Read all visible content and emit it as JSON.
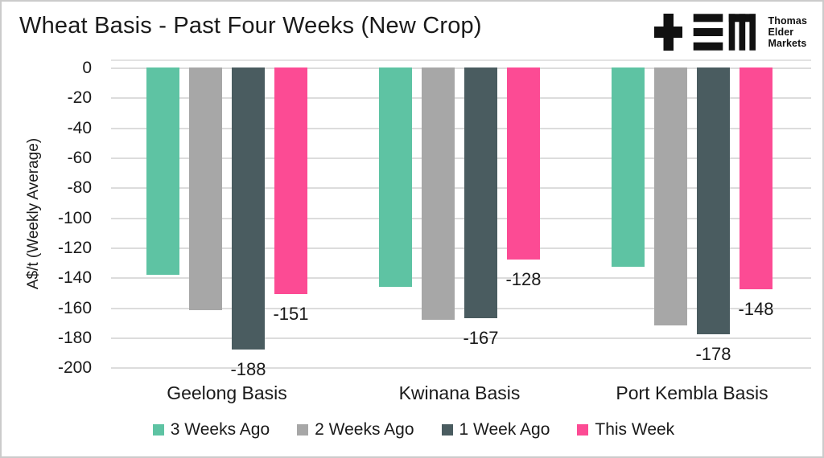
{
  "header": {
    "title": "Wheat Basis - Past Four Weeks (New Crop)"
  },
  "logo": {
    "lines": [
      "Thomas",
      "Elder",
      "Markets"
    ],
    "color": "#111111"
  },
  "chart_data": {
    "type": "bar",
    "title": "Wheat Basis - Past Four Weeks (New Crop)",
    "xlabel": "",
    "ylabel": "A$/t (Weekly Average)",
    "categories": [
      "Geelong Basis",
      "Kwinana Basis",
      "Port Kembla Basis"
    ],
    "series": [
      {
        "name": "3 Weeks Ago",
        "color": "#5EC3A3",
        "values": [
          -138,
          -146,
          -133
        ],
        "show_labels": false
      },
      {
        "name": "2 Weeks Ago",
        "color": "#A7A7A7",
        "values": [
          -162,
          -168,
          -172
        ],
        "show_labels": false
      },
      {
        "name": "1 Week Ago",
        "color": "#4A5C60",
        "values": [
          -188,
          -167,
          -178
        ],
        "show_labels": true
      },
      {
        "name": "This Week",
        "color": "#FC4B94",
        "values": [
          -151,
          -128,
          -148
        ],
        "show_labels": true
      }
    ],
    "data_labels": {
      "1 Week Ago": [
        "-188",
        "-167",
        "-178"
      ],
      "This Week": [
        "-151",
        "-128",
        "-148"
      ]
    },
    "ylim": [
      0,
      -200
    ],
    "ytick_step": 20,
    "yticks": [
      0,
      -20,
      -40,
      -60,
      -80,
      -100,
      -120,
      -140,
      -160,
      -180,
      -200
    ],
    "ytick_labels": [
      "0",
      "-20",
      "-40",
      "-60",
      "-80",
      "-100",
      "-120",
      "-140",
      "-160",
      "-180",
      "-200"
    ],
    "grid": true,
    "legend_position": "bottom"
  },
  "colors": {
    "text": "#1a1a1a",
    "gridline": "#dcdcdc",
    "frame_border": "#cbcbcb",
    "background": "#ffffff"
  }
}
